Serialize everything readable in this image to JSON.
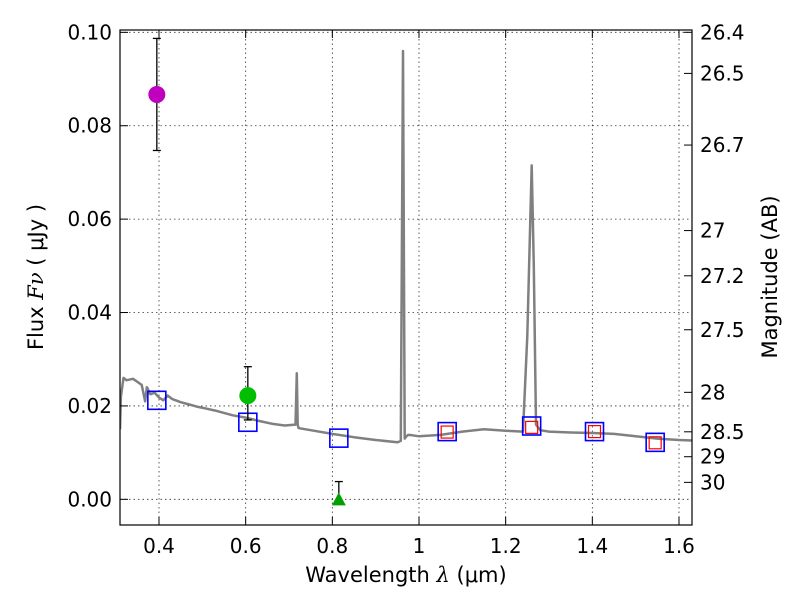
{
  "chart_data": {
    "type": "scatter",
    "title": "",
    "xlabel_prefix": "Wavelength  ",
    "xlabel_symbol": "λ",
    "xlabel_unit": " (μm)",
    "ylabel_prefix": "Flux  ",
    "ylabel_symbol": "Fν",
    "ylabel_unit": "  ( μJy )",
    "y2label": "Magnitude (AB)",
    "xlim": [
      0.31,
      1.63
    ],
    "ylim": [
      -0.0055,
      0.1005
    ],
    "grid": true,
    "x_ticks": [
      0.4,
      0.6,
      0.8,
      1.0,
      1.2,
      1.4,
      1.6
    ],
    "x_tick_labels": [
      "0.4",
      "0.6",
      "0.8",
      "1",
      "1.2",
      "1.4",
      "1.6"
    ],
    "y_ticks": [
      0.0,
      0.02,
      0.04,
      0.06,
      0.08,
      0.1
    ],
    "y_tick_labels": [
      "0.00",
      "0.02",
      "0.04",
      "0.06",
      "0.08",
      "0.10"
    ],
    "mag_ticks": [
      26.4,
      26.5,
      26.7,
      27,
      27.2,
      27.5,
      28,
      28.5,
      29,
      30
    ],
    "mag_tick_labels": [
      "26.4",
      "26.5",
      "26.7",
      "27",
      "27.2",
      "27.5",
      "28",
      "28.5",
      "29",
      "30"
    ],
    "colors": {
      "sed": "#808080",
      "magenta": "#bf00bf",
      "green": "#00bf00",
      "green_triangle": "#00a000",
      "blue_square": "#0000ff",
      "red_square": "#ff0000",
      "errorbar": "#000000"
    },
    "sed_model": {
      "name": "SED template",
      "x": [
        0.31,
        0.312,
        0.318,
        0.325,
        0.34,
        0.36,
        0.368,
        0.372,
        0.38,
        0.39,
        0.4,
        0.41,
        0.42,
        0.43,
        0.45,
        0.47,
        0.49,
        0.51,
        0.53,
        0.55,
        0.57,
        0.6,
        0.63,
        0.66,
        0.69,
        0.715,
        0.718,
        0.72,
        0.722,
        0.725,
        0.75,
        0.8,
        0.85,
        0.9,
        0.95,
        0.958,
        0.963,
        0.967,
        0.971,
        0.975,
        0.985,
        1.0,
        1.05,
        1.1,
        1.15,
        1.2,
        1.24,
        1.25,
        1.26,
        1.265,
        1.27,
        1.28,
        1.3,
        1.35,
        1.4,
        1.45,
        1.5,
        1.55,
        1.6,
        1.63
      ],
      "y": [
        0.015,
        0.022,
        0.026,
        0.0255,
        0.0258,
        0.0245,
        0.021,
        0.024,
        0.0225,
        0.0228,
        0.0218,
        0.0212,
        0.0222,
        0.0215,
        0.0208,
        0.0203,
        0.0198,
        0.0194,
        0.019,
        0.0185,
        0.018,
        0.0175,
        0.0168,
        0.0162,
        0.0158,
        0.016,
        0.027,
        0.016,
        0.0153,
        0.0152,
        0.0148,
        0.014,
        0.0133,
        0.0127,
        0.0122,
        0.0125,
        0.096,
        0.013,
        0.0135,
        0.0138,
        0.0137,
        0.0135,
        0.0138,
        0.0145,
        0.015,
        0.0147,
        0.0145,
        0.035,
        0.0715,
        0.05,
        0.016,
        0.0148,
        0.0145,
        0.0143,
        0.0142,
        0.014,
        0.0135,
        0.013,
        0.0127,
        0.0126
      ]
    },
    "detections": [
      {
        "name": "magenta-circle",
        "x": 0.395,
        "y": 0.0867,
        "yerr": 0.012,
        "color": "#bf00bf"
      },
      {
        "name": "green-circle",
        "x": 0.605,
        "y": 0.0222,
        "yerr_up": 0.0062,
        "yerr_down": 0.0052,
        "color": "#00bf00"
      }
    ],
    "upper_limit": {
      "name": "green-triangle",
      "x": 0.815,
      "y": 0.0,
      "yerr_up": 0.0038,
      "color": "#00a000"
    },
    "model_photometry": {
      "name": "model band flux",
      "x": [
        0.395,
        0.605,
        0.815,
        1.065,
        1.26,
        1.405,
        1.545
      ],
      "y": [
        0.0212,
        0.0165,
        0.0131,
        0.0145,
        0.0157,
        0.0145,
        0.0122
      ]
    },
    "observed_photometry": {
      "name": "observed band flux",
      "x": [
        1.065,
        1.26,
        1.405,
        1.545
      ],
      "y": [
        0.0144,
        0.0154,
        0.0145,
        0.0121
      ]
    }
  }
}
